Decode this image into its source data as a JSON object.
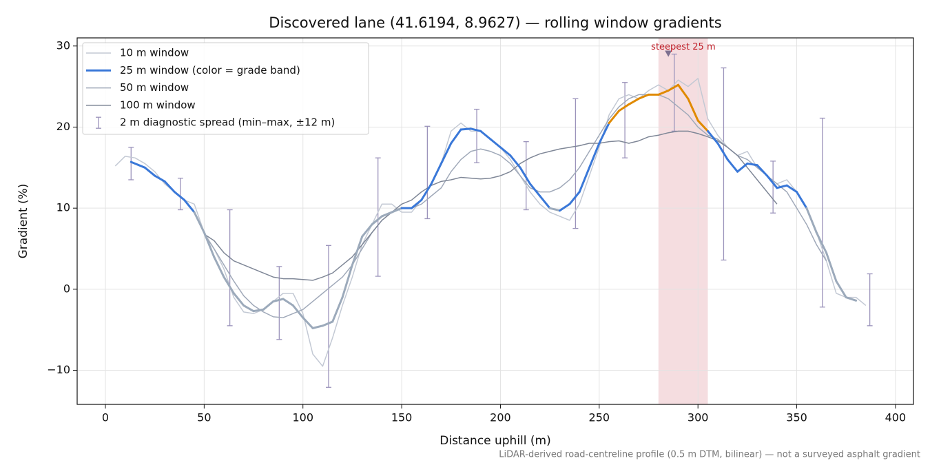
{
  "chart_data": {
    "type": "line",
    "title": "Discovered lane (41.6194, 8.9627) — rolling window gradients",
    "x_label": "Distance uphill (m)",
    "y_label": "Gradient (%)",
    "footnote": "LiDAR-derived road-centreline profile (0.5 m DTM, bilinear) — not a surveyed asphalt gradient",
    "xlim": [
      -14.3,
      409.1
    ],
    "ylim": [
      -14.2,
      31.0
    ],
    "xticks": [
      0,
      50,
      100,
      150,
      200,
      250,
      300,
      350,
      400
    ],
    "yticks": [
      {
        "value": -10,
        "label": "−10"
      },
      0,
      10,
      20,
      30
    ],
    "grid": true,
    "legend": "upper left",
    "series": [
      {
        "name": "10 m window",
        "color": "#c3c9d4",
        "width": 1.5,
        "x": [
          5,
          10,
          15,
          20,
          25,
          30,
          35,
          40,
          45,
          50,
          55,
          60,
          65,
          70,
          75,
          80,
          85,
          90,
          95,
          100,
          105,
          110,
          115,
          120,
          125,
          130,
          135,
          140,
          145,
          150,
          155,
          160,
          165,
          170,
          175,
          180,
          185,
          190,
          195,
          200,
          205,
          210,
          215,
          220,
          225,
          230,
          235,
          240,
          245,
          250,
          255,
          260,
          265,
          270,
          275,
          280,
          285,
          290,
          295,
          300,
          305,
          310,
          315,
          320,
          325,
          330,
          335,
          340,
          345,
          350,
          355,
          360,
          365,
          370,
          375,
          380,
          385
        ],
        "values": [
          15.2,
          16.4,
          16.2,
          15.5,
          14.5,
          13,
          12,
          11,
          10.5,
          7,
          5,
          2.5,
          -1,
          -2.8,
          -3,
          -2.5,
          -1.5,
          -0.5,
          -0.5,
          -3,
          -8,
          -9.5,
          -6,
          -2,
          1.5,
          5.5,
          8,
          10.5,
          10.5,
          9.5,
          9.5,
          11,
          13,
          15.5,
          19.5,
          20.5,
          19.5,
          19.5,
          18.5,
          17.5,
          16,
          14,
          12,
          10.5,
          9.5,
          9,
          8.5,
          10.5,
          14,
          17.5,
          21.5,
          23.5,
          24,
          23.5,
          24.5,
          25.2,
          24.5,
          25.8,
          25,
          26,
          21,
          19,
          17.5,
          16.5,
          17,
          15,
          14,
          13,
          13.5,
          12,
          10,
          7,
          3.5,
          -0.5,
          -1,
          -1,
          -2
        ]
      },
      {
        "name": "25 m window (color = grade band)",
        "color": "#3a78d8",
        "width": 3,
        "band_edges": [
          10,
          20,
          25
        ],
        "band_colors": [
          "#9caabb",
          "#3a78d8",
          "#e08a00",
          "#c0202a"
        ],
        "x": [
          13,
          20,
          25,
          30,
          35,
          40,
          45,
          50,
          55,
          60,
          65,
          70,
          75,
          80,
          85,
          90,
          95,
          100,
          105,
          110,
          115,
          120,
          125,
          130,
          135,
          140,
          145,
          150,
          155,
          160,
          165,
          170,
          175,
          180,
          185,
          190,
          195,
          200,
          205,
          210,
          215,
          220,
          225,
          230,
          235,
          240,
          245,
          250,
          255,
          260,
          265,
          270,
          275,
          280,
          285,
          290,
          295,
          300,
          305,
          310,
          315,
          320,
          325,
          330,
          335,
          340,
          345,
          350,
          355,
          360,
          365,
          370,
          375,
          380
        ],
        "values": [
          15.7,
          15,
          14,
          13.3,
          12,
          11,
          9.5,
          7,
          4,
          1.5,
          -0.5,
          -2,
          -2.7,
          -2.5,
          -1.5,
          -1.2,
          -2,
          -3.5,
          -4.8,
          -4.5,
          -4,
          -1,
          3,
          6.5,
          8,
          9,
          9.5,
          10,
          10,
          11,
          13,
          15.5,
          18,
          19.7,
          19.8,
          19.5,
          18.5,
          17.5,
          16.5,
          15,
          13,
          11.5,
          10,
          9.7,
          10.5,
          12,
          15,
          18,
          20.5,
          22,
          22.8,
          23.5,
          24,
          24,
          24.5,
          25.2,
          23.5,
          20.8,
          19.5,
          18,
          16,
          14.5,
          15.5,
          15.3,
          14,
          12.5,
          12.8,
          12,
          10,
          7,
          4.5,
          1,
          -1,
          -1.4
        ]
      },
      {
        "name": "50 m window",
        "color": "#a0a9b9",
        "width": 1.5,
        "x": [
          50,
          55,
          60,
          65,
          70,
          75,
          80,
          85,
          90,
          95,
          100,
          105,
          110,
          115,
          120,
          125,
          130,
          135,
          140,
          145,
          150,
          155,
          160,
          165,
          170,
          175,
          180,
          185,
          190,
          195,
          200,
          205,
          210,
          215,
          220,
          225,
          230,
          235,
          240,
          245,
          250,
          255,
          260,
          265,
          270,
          275,
          280,
          285,
          290,
          295,
          300,
          305,
          310,
          315,
          320,
          325,
          330,
          335,
          340,
          345,
          350,
          355,
          360,
          365
        ],
        "values": [
          6.8,
          5,
          3,
          1,
          -0.8,
          -2,
          -2.8,
          -3.4,
          -3.5,
          -3,
          -2.5,
          -1.5,
          -0.5,
          0.5,
          1.5,
          3,
          5,
          7,
          8.5,
          9.5,
          10,
          10,
          10.5,
          11.5,
          12.5,
          14.5,
          16,
          17,
          17.3,
          17,
          16.5,
          15.5,
          14,
          12.5,
          12,
          12,
          12.5,
          13.5,
          15,
          17,
          19,
          21,
          22.5,
          23.5,
          24,
          24,
          24,
          23.5,
          22.5,
          21.5,
          20,
          19,
          18.5,
          17.5,
          16.5,
          16,
          15,
          14,
          13,
          12,
          10,
          8,
          5.5,
          3.5
        ]
      },
      {
        "name": "100 m window",
        "color": "#7f8797",
        "width": 1.5,
        "x": [
          50,
          55,
          60,
          65,
          70,
          75,
          80,
          85,
          90,
          95,
          100,
          105,
          110,
          115,
          120,
          125,
          130,
          135,
          140,
          145,
          150,
          155,
          160,
          165,
          170,
          175,
          180,
          185,
          190,
          195,
          200,
          205,
          210,
          215,
          220,
          225,
          230,
          235,
          240,
          245,
          250,
          255,
          260,
          265,
          270,
          275,
          280,
          285,
          290,
          295,
          300,
          305,
          310,
          315,
          320,
          325,
          330,
          335,
          340
        ],
        "values": [
          6.8,
          6,
          4.5,
          3.5,
          3,
          2.5,
          2,
          1.5,
          1.3,
          1.3,
          1.2,
          1.1,
          1.5,
          2,
          3,
          4,
          5.5,
          7,
          8.5,
          9.5,
          10.5,
          11,
          12,
          12.8,
          13.3,
          13.5,
          13.8,
          13.7,
          13.6,
          13.7,
          14,
          14.5,
          15.5,
          16.2,
          16.7,
          17,
          17.3,
          17.5,
          17.7,
          18,
          18,
          18.2,
          18.3,
          18,
          18.3,
          18.8,
          19,
          19.3,
          19.5,
          19.5,
          19.2,
          18.8,
          18.3,
          17.5,
          16.5,
          15,
          13.5,
          12,
          10.5
        ]
      }
    ],
    "error_bars": {
      "name": "2 m diagnostic spread (min–max, ±12 m)",
      "color": "#9b93bb",
      "x": [
        13,
        38,
        63,
        88,
        113,
        138,
        163,
        188,
        213,
        238,
        263,
        288,
        313,
        338,
        363,
        387
      ],
      "low": [
        13.5,
        9.8,
        -4.5,
        -6.2,
        -12.1,
        1.6,
        8.7,
        15.6,
        9.8,
        7.5,
        16.2,
        19.5,
        3.6,
        9.4,
        -2.2,
        -4.5
      ],
      "high": [
        17.5,
        13.7,
        9.8,
        2.8,
        5.4,
        16.2,
        20.1,
        22.2,
        18.2,
        23.5,
        25.5,
        29,
        27.3,
        15.8,
        21.1,
        1.9
      ]
    },
    "highlight_span": {
      "x": [
        280,
        305
      ],
      "color": "#e8b4ba"
    },
    "annotation": {
      "text": "steepest 25 m",
      "x": 285,
      "y": 29,
      "color": "#c0202a"
    }
  }
}
